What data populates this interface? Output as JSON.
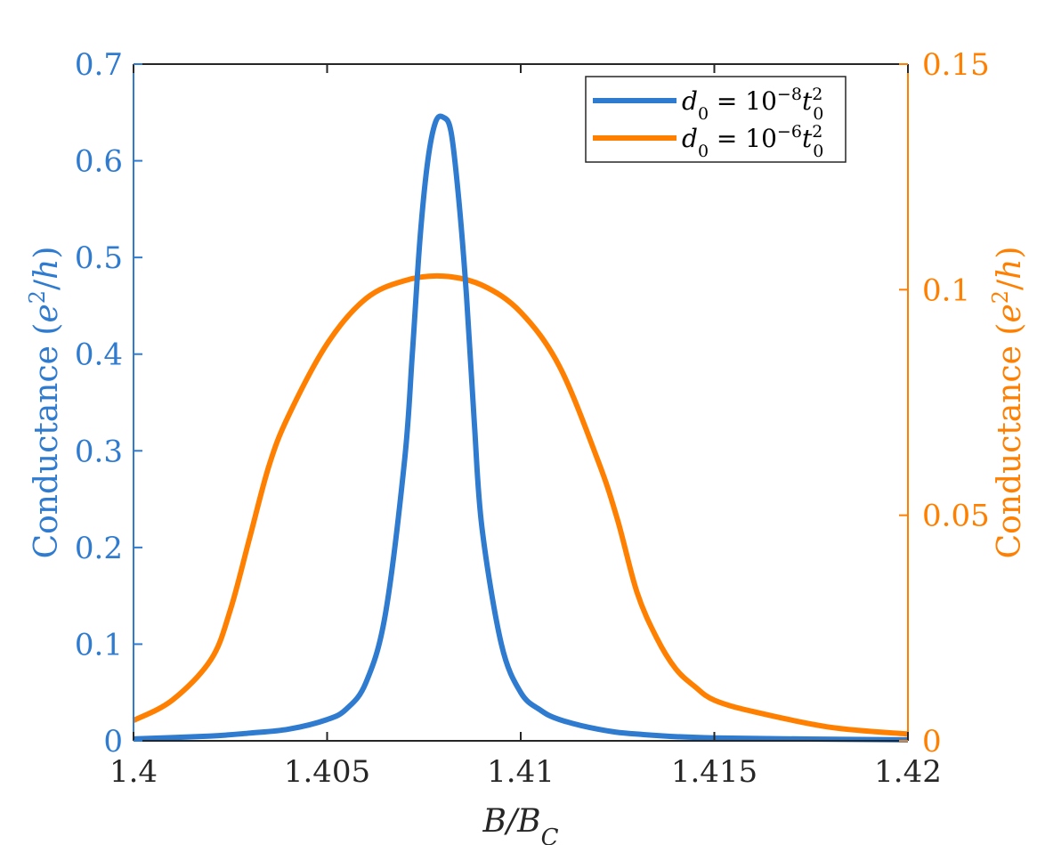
{
  "chart_data": {
    "type": "line",
    "xlabel": "B/B_C",
    "xlim": [
      1.4,
      1.42
    ],
    "x_ticks": [
      "1.4",
      "1.405",
      "1.41",
      "1.415",
      "1.42"
    ],
    "left_axis": {
      "label": "Conductance (e²/h)",
      "ylim": [
        0,
        0.7
      ],
      "ticks": [
        "0",
        "0.1",
        "0.2",
        "0.3",
        "0.4",
        "0.5",
        "0.6",
        "0.7"
      ],
      "color": "#2f7bd0"
    },
    "right_axis": {
      "label": "Conductance (e²/h)",
      "ylim": [
        0,
        0.15
      ],
      "ticks": [
        "0",
        "0.05",
        "0.1",
        "0.15"
      ],
      "color": "#ff8000"
    },
    "legend_placement": "top-right",
    "series": [
      {
        "name": "d₀ = 10⁻⁸ t₀²",
        "axis": "left",
        "color": "#2f7bd0",
        "x": [
          1.4,
          1.402,
          1.403,
          1.404,
          1.405,
          1.4055,
          1.406,
          1.4065,
          1.407,
          1.4072,
          1.4074,
          1.4076,
          1.4078,
          1.408,
          1.4082,
          1.4084,
          1.4086,
          1.4088,
          1.409,
          1.4095,
          1.41,
          1.4105,
          1.411,
          1.412,
          1.413,
          1.415,
          1.42
        ],
        "values": [
          0.002,
          0.005,
          0.008,
          0.012,
          0.022,
          0.033,
          0.06,
          0.13,
          0.29,
          0.4,
          0.52,
          0.6,
          0.64,
          0.645,
          0.63,
          0.56,
          0.46,
          0.33,
          0.22,
          0.1,
          0.05,
          0.032,
          0.022,
          0.012,
          0.007,
          0.003,
          0.001
        ]
      },
      {
        "name": "d₀ = 10⁻⁶ t₀²",
        "axis": "right",
        "color": "#ff8000",
        "x": [
          1.4,
          1.401,
          1.402,
          1.4025,
          1.403,
          1.4035,
          1.404,
          1.405,
          1.406,
          1.407,
          1.408,
          1.409,
          1.41,
          1.411,
          1.412,
          1.4125,
          1.413,
          1.4135,
          1.414,
          1.4145,
          1.415,
          1.416,
          1.418,
          1.42
        ],
        "values": [
          0.0045,
          0.009,
          0.018,
          0.029,
          0.045,
          0.061,
          0.072,
          0.088,
          0.098,
          0.102,
          0.103,
          0.101,
          0.095,
          0.083,
          0.062,
          0.049,
          0.033,
          0.023,
          0.016,
          0.012,
          0.009,
          0.0065,
          0.003,
          0.0015
        ]
      }
    ]
  }
}
